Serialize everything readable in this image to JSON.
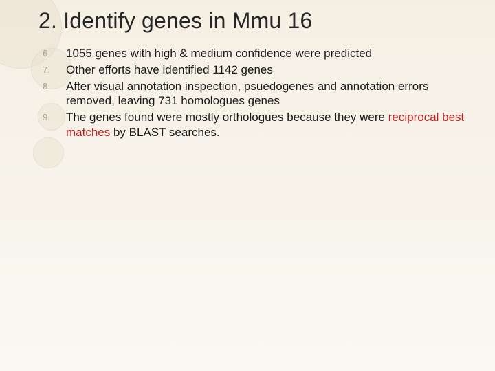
{
  "title": "2. Identify genes in Mmu 16",
  "colors": {
    "background_top": "#f5efe3",
    "background_bottom": "#faf8f2",
    "title_color": "#262626",
    "body_text_color": "#1a1a1a",
    "number_color": "#a7a090",
    "emphasis_color": "#c02020",
    "deco_fill": "rgba(230,220,200,0.35)"
  },
  "typography": {
    "title_fontsize": 32,
    "body_fontsize": 17,
    "number_fontsize": 13,
    "font_family": "Arial"
  },
  "items": [
    {
      "n": "6.",
      "text": "1055 genes with high & medium confidence were predicted"
    },
    {
      "n": "7.",
      "text": "Other efforts have identified 1142 genes"
    },
    {
      "n": "8.",
      "text": "After visual annotation inspection, psuedogenes and annotation errors removed, leaving 731 homologues genes"
    },
    {
      "n": "9.",
      "text_pre": "The genes found were mostly orthologues because they were ",
      "text_em": "reciprocal best matches",
      "text_post": " by BLAST searches."
    }
  ]
}
